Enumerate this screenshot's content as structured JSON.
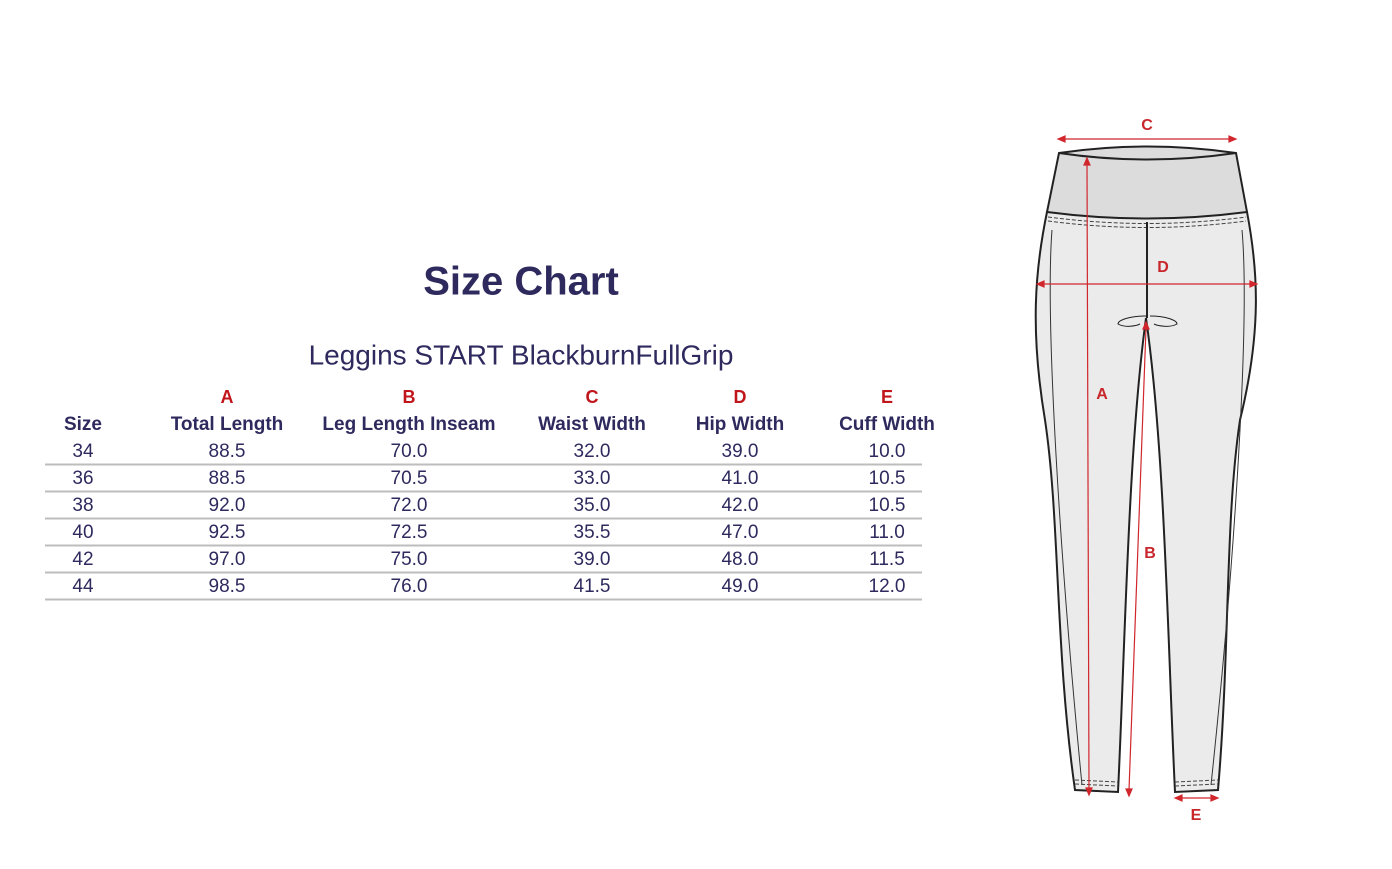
{
  "header": {
    "title": "Size Chart",
    "subtitle": "Leggins START BlackburnFullGrip"
  },
  "table": {
    "letters": [
      "",
      "A",
      "B",
      "C",
      "D",
      "E"
    ],
    "columns": [
      "Size",
      "Total Length",
      "Leg Length Inseam",
      "Waist Width",
      "Hip Width",
      "Cuff Width"
    ],
    "rows": [
      [
        "34",
        "88.5",
        "70.0",
        "32.0",
        "39.0",
        "10.0"
      ],
      [
        "36",
        "88.5",
        "70.5",
        "33.0",
        "41.0",
        "10.5"
      ],
      [
        "38",
        "92.0",
        "72.0",
        "35.0",
        "42.0",
        "10.5"
      ],
      [
        "40",
        "92.5",
        "72.5",
        "35.5",
        "47.0",
        "11.0"
      ],
      [
        "42",
        "97.0",
        "75.0",
        "39.0",
        "48.0",
        "11.5"
      ],
      [
        "44",
        "98.5",
        "76.0",
        "41.5",
        "49.0",
        "12.0"
      ]
    ]
  },
  "diagram": {
    "labels": {
      "c": "C",
      "d": "D",
      "a": "A",
      "b": "B",
      "e": "E"
    }
  }
}
